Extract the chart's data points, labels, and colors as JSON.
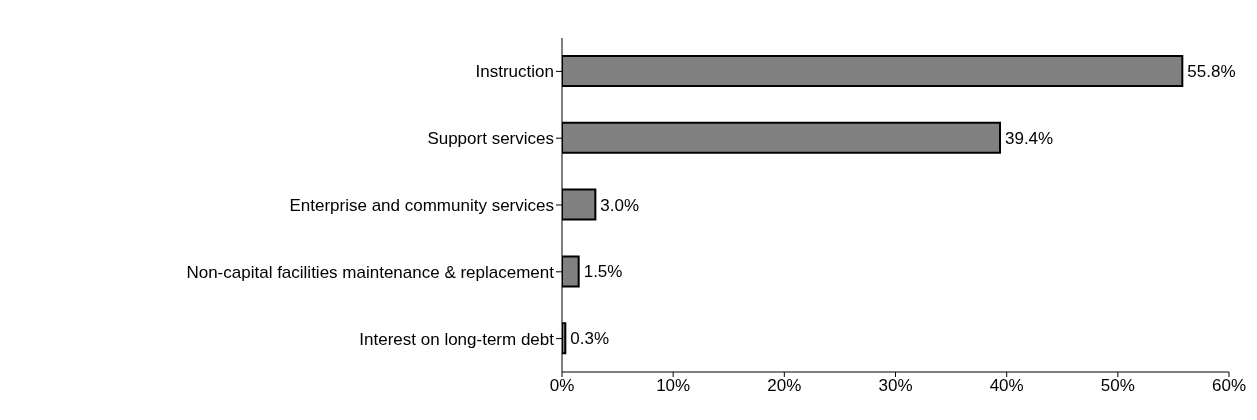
{
  "chart_data": {
    "type": "bar",
    "orientation": "horizontal",
    "categories": [
      "Instruction",
      "Support services",
      "Enterprise and community services",
      "Non-capital facilities maintenance & replacement",
      "Interest on long-term debt"
    ],
    "values": [
      55.8,
      39.4,
      3.0,
      1.5,
      0.3
    ],
    "value_labels": [
      "55.8%",
      "39.4%",
      "3.0%",
      "1.5%",
      "0.3%"
    ],
    "color": "#808080",
    "xlim": [
      0,
      60
    ],
    "xticks": [
      {
        "value": 0,
        "label": "0%"
      },
      {
        "value": 10,
        "label": "10%"
      },
      {
        "value": 20,
        "label": "20%"
      },
      {
        "value": 30,
        "label": "30%"
      },
      {
        "value": 40,
        "label": "40%"
      },
      {
        "value": 50,
        "label": "50%"
      },
      {
        "value": 60,
        "label": "60%"
      }
    ],
    "grid": false,
    "legend": false
  }
}
